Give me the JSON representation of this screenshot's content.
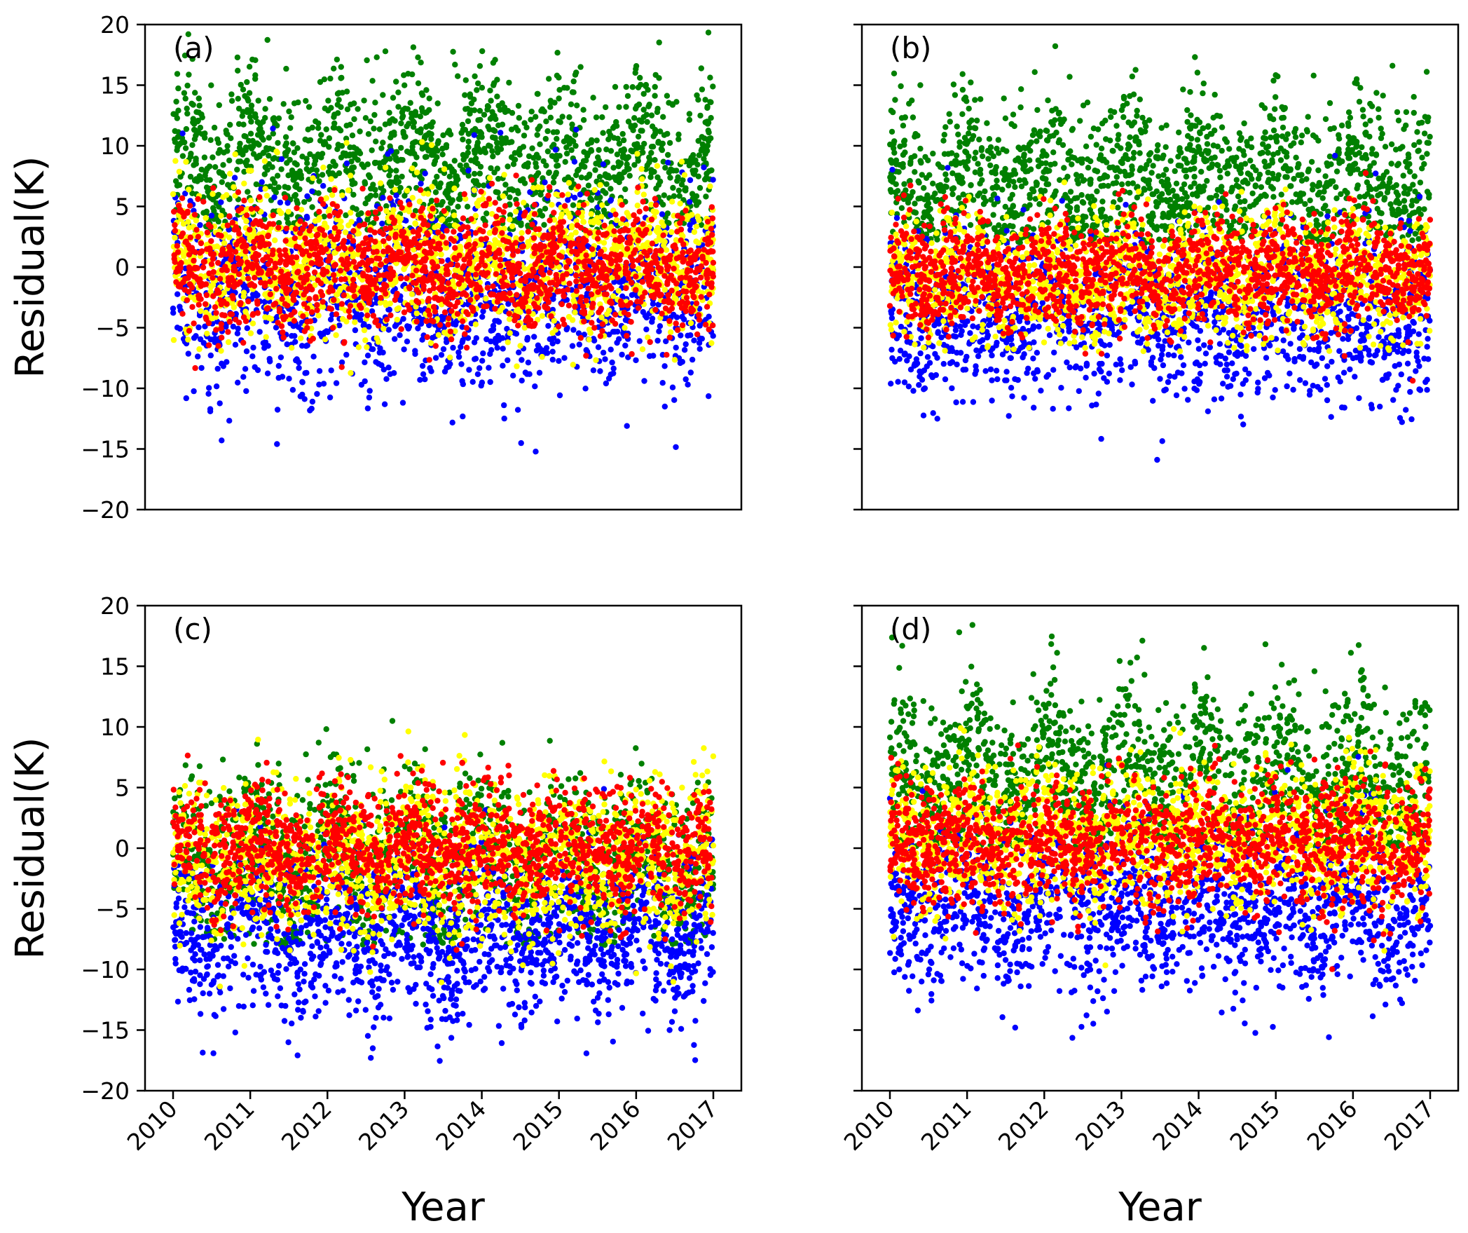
{
  "figure": {
    "ylabel": "Residual(K)",
    "xlabel": "Year",
    "x_ticks": [
      "2010",
      "2011",
      "2012",
      "2013",
      "2014",
      "2015",
      "2016",
      "2017"
    ],
    "y_ticks": [
      "20",
      "15",
      "10",
      "5",
      "0",
      "−5",
      "−10",
      "−15",
      "−20"
    ]
  },
  "chart_data": [
    {
      "panel": "(a)",
      "type": "scatter",
      "xlim": [
        2010,
        2017
      ],
      "ylim": [
        -20,
        20
      ],
      "ylabel": "Residual(K)",
      "xlabel": "",
      "grid": false,
      "series": [
        {
          "color": "#008000",
          "approx_center_K": 9,
          "approx_spread_K": 3.2,
          "approx_range_K": [
            3,
            19.5
          ]
        },
        {
          "color": "#0000ff",
          "approx_center_K": -2,
          "approx_spread_K": 4,
          "approx_range_K": [
            -16,
            13.5
          ]
        },
        {
          "color": "#ffff00",
          "approx_center_K": 0.5,
          "approx_spread_K": 3,
          "approx_range_K": [
            -9,
            10.5
          ]
        },
        {
          "color": "#ff0000",
          "approx_center_K": 0,
          "approx_spread_K": 2.6,
          "approx_range_K": [
            -8.5,
            12
          ]
        }
      ]
    },
    {
      "panel": "(b)",
      "type": "scatter",
      "xlim": [
        2010,
        2017
      ],
      "ylim": [
        -20,
        20
      ],
      "ylabel": "",
      "xlabel": "",
      "grid": false,
      "series": [
        {
          "color": "#008000",
          "approx_center_K": 7,
          "approx_spread_K": 3.2,
          "approx_range_K": [
            2,
            19.5
          ]
        },
        {
          "color": "#0000ff",
          "approx_center_K": -4,
          "approx_spread_K": 3.5,
          "approx_range_K": [
            -16,
            12
          ]
        },
        {
          "color": "#ffff00",
          "approx_center_K": -1,
          "approx_spread_K": 2.5,
          "approx_range_K": [
            -7,
            8
          ]
        },
        {
          "color": "#ff0000",
          "approx_center_K": -0.5,
          "approx_spread_K": 2.3,
          "approx_range_K": [
            -10,
            12
          ]
        }
      ]
    },
    {
      "panel": "(c)",
      "type": "scatter",
      "xlim": [
        2010,
        2017
      ],
      "ylim": [
        -20,
        20
      ],
      "ylabel": "Residual(K)",
      "xlabel": "Year",
      "grid": false,
      "series": [
        {
          "color": "#008000",
          "approx_center_K": -1,
          "approx_spread_K": 3.5,
          "approx_range_K": [
            -8,
            13
          ]
        },
        {
          "color": "#0000ff",
          "approx_center_K": -7,
          "approx_spread_K": 3.5,
          "approx_range_K": [
            -20,
            11
          ]
        },
        {
          "color": "#ffff00",
          "approx_center_K": -1,
          "approx_spread_K": 3.2,
          "approx_range_K": [
            -12,
            12
          ]
        },
        {
          "color": "#ff0000",
          "approx_center_K": 0,
          "approx_spread_K": 2.6,
          "approx_range_K": [
            -10,
            12
          ]
        }
      ]
    },
    {
      "panel": "(d)",
      "type": "scatter",
      "xlim": [
        2010,
        2017
      ],
      "ylim": [
        -20,
        20
      ],
      "ylabel": "",
      "xlabel": "Year",
      "grid": false,
      "series": [
        {
          "color": "#008000",
          "approx_center_K": 6,
          "approx_spread_K": 3.4,
          "approx_range_K": [
            0,
            19.5
          ]
        },
        {
          "color": "#0000ff",
          "approx_center_K": -5,
          "approx_spread_K": 3.5,
          "approx_range_K": [
            -17,
            10
          ]
        },
        {
          "color": "#ffff00",
          "approx_center_K": 1,
          "approx_spread_K": 3,
          "approx_range_K": [
            -10,
            10
          ]
        },
        {
          "color": "#ff0000",
          "approx_center_K": 0.5,
          "approx_spread_K": 2.7,
          "approx_range_K": [
            -11.5,
            12
          ]
        }
      ]
    }
  ]
}
